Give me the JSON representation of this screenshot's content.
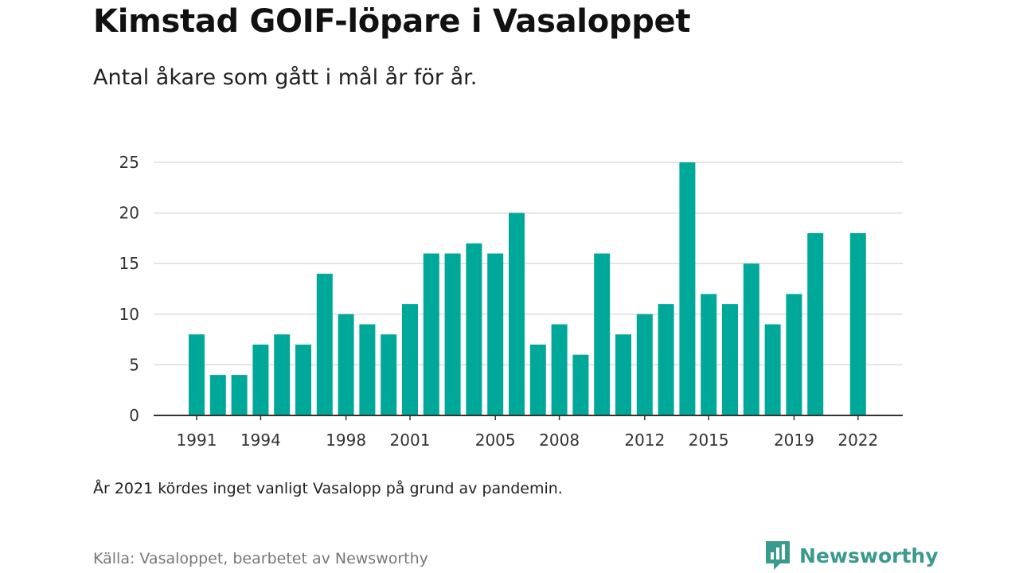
{
  "title": "Kimstad GOIF-löpare i Vasaloppet",
  "subtitle": "Antal åkare som gått i mål år för år.",
  "note": "År 2021 kördes inget vanligt Vasalopp på grund av pandemin.",
  "source": "Källa: Vasaloppet, bearbetet av Newsworthy",
  "brand": "Newsworthy",
  "colors": {
    "bar": "#00a89a",
    "grid": "#dddddd",
    "axis": "#333333",
    "brand": "#3a9a8e"
  },
  "chart_data": {
    "type": "bar",
    "categories": [
      1991,
      1992,
      1993,
      1994,
      1995,
      1996,
      1997,
      1998,
      1999,
      2000,
      2001,
      2002,
      2003,
      2004,
      2005,
      2006,
      2007,
      2008,
      2009,
      2010,
      2011,
      2012,
      2013,
      2014,
      2015,
      2016,
      2017,
      2018,
      2019,
      2020,
      2021,
      2022
    ],
    "values": [
      8,
      4,
      4,
      7,
      8,
      7,
      14,
      10,
      9,
      8,
      11,
      16,
      16,
      17,
      16,
      20,
      7,
      9,
      6,
      16,
      8,
      10,
      11,
      25,
      12,
      11,
      15,
      9,
      12,
      18,
      null,
      18
    ],
    "x_tick_labels": [
      "1991",
      "1994",
      "1998",
      "2001",
      "2005",
      "2008",
      "2012",
      "2015",
      "2019",
      "2022"
    ],
    "y_ticks": [
      0,
      5,
      10,
      15,
      20,
      25
    ],
    "ylim": [
      0,
      25
    ],
    "grid": true
  }
}
